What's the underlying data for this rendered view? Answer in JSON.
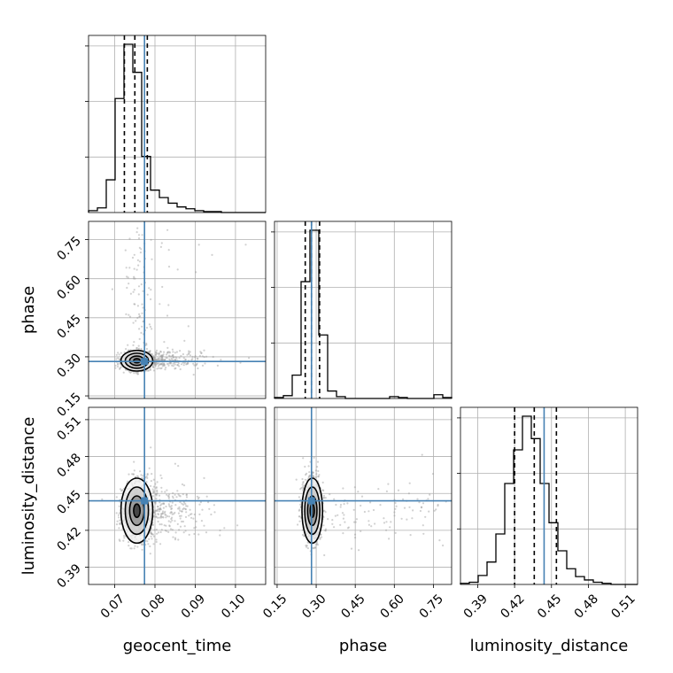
{
  "chart_data": {
    "type": "corner",
    "parameters": [
      "geocent_time",
      "phase",
      "luminosity_distance"
    ],
    "axis_labels": {
      "geocent_time": "geocent_time",
      "phase": "phase",
      "luminosity_distance": "luminosity_distance"
    },
    "ranges": {
      "geocent_time": [
        0.0635,
        0.1075
      ],
      "phase": [
        0.14,
        0.82
      ],
      "luminosity_distance": [
        0.376,
        0.52
      ]
    },
    "ticks": {
      "geocent_time": [
        0.07,
        0.08,
        0.09,
        0.1
      ],
      "phase": [
        0.15,
        0.3,
        0.45,
        0.6,
        0.75
      ],
      "luminosity_distance": [
        0.39,
        0.42,
        0.45,
        0.48,
        0.51
      ]
    },
    "tick_labels": {
      "geocent_time": [
        "0.07",
        "0.08",
        "0.09",
        "0.10"
      ],
      "phase_x": [
        "0.15",
        "0.30",
        "0.45",
        "0.60",
        "0.75"
      ],
      "phase_y": [
        "0.15",
        "0.30",
        "0.45",
        "0.60",
        "0.75"
      ],
      "luminosity_distance_x": [
        "0.39",
        "0.42",
        "0.45",
        "0.48",
        "0.51"
      ],
      "luminosity_distance_y": [
        "0.39",
        "0.42",
        "0.45",
        "0.48",
        "0.51"
      ]
    },
    "truths": {
      "geocent_time": 0.0774,
      "phase": 0.282,
      "luminosity_distance": 0.444
    },
    "quantiles": {
      "geocent_time": [
        0.0724,
        0.075,
        0.0781
      ],
      "phase": [
        0.258,
        0.282,
        0.313
      ],
      "luminosity_distance": [
        0.42,
        0.436,
        0.454
      ]
    },
    "histograms": {
      "geocent_time": {
        "edges": [
          0.0635,
          0.0657,
          0.0679,
          0.0701,
          0.0723,
          0.0745,
          0.0767,
          0.0789,
          0.0811,
          0.0833,
          0.0855,
          0.0877,
          0.0899,
          0.0921,
          0.0943,
          0.0965,
          0.0987,
          0.1009,
          0.1031,
          0.1053,
          0.1075
        ],
        "counts": [
          2,
          5,
          35,
          122,
          180,
          150,
          60,
          24,
          16,
          10,
          6,
          4,
          2,
          1,
          1,
          0,
          0,
          0,
          0,
          0
        ]
      },
      "phase": {
        "edges": [
          0.14,
          0.174,
          0.208,
          0.242,
          0.276,
          0.31,
          0.344,
          0.378,
          0.412,
          0.446,
          0.48,
          0.514,
          0.548,
          0.582,
          0.616,
          0.65,
          0.684,
          0.718,
          0.752,
          0.786,
          0.82
        ],
        "counts": [
          1,
          3,
          25,
          125,
          180,
          68,
          8,
          2,
          0,
          0,
          0,
          0,
          0,
          2,
          1,
          0,
          0,
          0,
          4,
          1
        ]
      },
      "luminosity_distance": {
        "edges": [
          0.376,
          0.3832,
          0.3904,
          0.3976,
          0.4048,
          0.412,
          0.4192,
          0.4264,
          0.4336,
          0.4408,
          0.448,
          0.4552,
          0.4624,
          0.4696,
          0.4768,
          0.484,
          0.4912,
          0.4984,
          0.5056,
          0.5128,
          0.52
        ],
        "counts": [
          1,
          2,
          8,
          20,
          45,
          90,
          120,
          150,
          130,
          90,
          55,
          30,
          14,
          7,
          4,
          2,
          1,
          0,
          0,
          0
        ]
      }
    },
    "joint_centers": {
      "geocent_time_phase": [
        0.0755,
        0.285
      ],
      "geocent_time_luminosity_distance": [
        0.0755,
        0.436
      ],
      "phase_luminosity_distance": [
        0.285,
        0.436
      ]
    },
    "grid": true,
    "colors": {
      "hist": "#000000",
      "truth": "#4682b4",
      "quantile": "#000000",
      "points": "#9a9a9a",
      "grid": "#b0b0b0"
    }
  }
}
